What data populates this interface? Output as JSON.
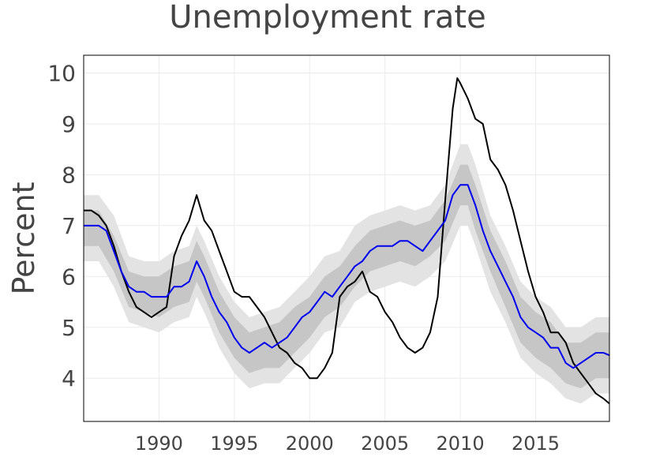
{
  "chart_data": {
    "type": "line",
    "title": "Unemployment rate",
    "xlabel": "",
    "ylabel": "Percent",
    "xlim": [
      1985.0,
      2019.9
    ],
    "ylim": [
      3.15,
      10.35
    ],
    "x_ticks": [
      1990,
      1995,
      2000,
      2005,
      2010,
      2015
    ],
    "y_ticks": [
      4,
      5,
      6,
      7,
      8,
      9,
      10
    ],
    "grid": true,
    "colors": {
      "actual": "#000000",
      "median": "#0000ee",
      "band_outer": "#e3e3e3",
      "band_inner": "#c6c6c6",
      "grid": "#ebebeb"
    },
    "series": [
      {
        "style": "line",
        "color": "#000000",
        "points": [
          [
            1985.0,
            7.3
          ],
          [
            1985.5,
            7.3
          ],
          [
            1986.0,
            7.2
          ],
          [
            1986.5,
            7.0
          ],
          [
            1987.0,
            6.6
          ],
          [
            1987.5,
            6.1
          ],
          [
            1988.0,
            5.7
          ],
          [
            1988.5,
            5.4
          ],
          [
            1989.0,
            5.3
          ],
          [
            1989.5,
            5.2
          ],
          [
            1990.0,
            5.3
          ],
          [
            1990.5,
            5.4
          ],
          [
            1991.0,
            6.4
          ],
          [
            1991.5,
            6.8
          ],
          [
            1992.0,
            7.1
          ],
          [
            1992.5,
            7.6
          ],
          [
            1993.0,
            7.1
          ],
          [
            1993.5,
            6.9
          ],
          [
            1994.0,
            6.5
          ],
          [
            1994.5,
            6.1
          ],
          [
            1995.0,
            5.7
          ],
          [
            1995.5,
            5.6
          ],
          [
            1996.0,
            5.6
          ],
          [
            1996.5,
            5.4
          ],
          [
            1997.0,
            5.2
          ],
          [
            1997.5,
            4.9
          ],
          [
            1998.0,
            4.6
          ],
          [
            1998.5,
            4.5
          ],
          [
            1999.0,
            4.3
          ],
          [
            1999.5,
            4.2
          ],
          [
            2000.0,
            4.0
          ],
          [
            2000.5,
            4.0
          ],
          [
            2001.0,
            4.2
          ],
          [
            2001.5,
            4.5
          ],
          [
            2002.0,
            5.6
          ],
          [
            2002.5,
            5.8
          ],
          [
            2003.0,
            5.9
          ],
          [
            2003.5,
            6.1
          ],
          [
            2004.0,
            5.7
          ],
          [
            2004.5,
            5.6
          ],
          [
            2005.0,
            5.3
          ],
          [
            2005.5,
            5.1
          ],
          [
            2006.0,
            4.8
          ],
          [
            2006.5,
            4.6
          ],
          [
            2007.0,
            4.5
          ],
          [
            2007.5,
            4.6
          ],
          [
            2008.0,
            4.9
          ],
          [
            2008.5,
            5.6
          ],
          [
            2009.0,
            7.5
          ],
          [
            2009.5,
            9.3
          ],
          [
            2009.8,
            9.9
          ],
          [
            2010.0,
            9.8
          ],
          [
            2010.5,
            9.5
          ],
          [
            2011.0,
            9.1
          ],
          [
            2011.5,
            9.0
          ],
          [
            2012.0,
            8.3
          ],
          [
            2012.5,
            8.1
          ],
          [
            2013.0,
            7.8
          ],
          [
            2013.5,
            7.3
          ],
          [
            2014.0,
            6.7
          ],
          [
            2014.5,
            6.1
          ],
          [
            2015.0,
            5.6
          ],
          [
            2015.5,
            5.3
          ],
          [
            2016.0,
            4.9
          ],
          [
            2016.5,
            4.9
          ],
          [
            2017.0,
            4.7
          ],
          [
            2017.5,
            4.3
          ],
          [
            2018.0,
            4.1
          ],
          [
            2018.5,
            3.9
          ],
          [
            2019.0,
            3.7
          ],
          [
            2019.5,
            3.6
          ],
          [
            2019.9,
            3.5
          ]
        ]
      },
      {
        "style": "line",
        "color": "#0000ee",
        "points": [
          [
            1985.0,
            7.0
          ],
          [
            1985.5,
            7.0
          ],
          [
            1986.0,
            7.0
          ],
          [
            1986.5,
            6.9
          ],
          [
            1987.0,
            6.5
          ],
          [
            1987.5,
            6.1
          ],
          [
            1988.0,
            5.8
          ],
          [
            1988.5,
            5.7
          ],
          [
            1989.0,
            5.7
          ],
          [
            1989.5,
            5.6
          ],
          [
            1990.0,
            5.6
          ],
          [
            1990.5,
            5.6
          ],
          [
            1991.0,
            5.8
          ],
          [
            1991.5,
            5.8
          ],
          [
            1992.0,
            5.9
          ],
          [
            1992.5,
            6.3
          ],
          [
            1993.0,
            6.0
          ],
          [
            1993.5,
            5.6
          ],
          [
            1994.0,
            5.3
          ],
          [
            1994.5,
            5.1
          ],
          [
            1995.0,
            4.8
          ],
          [
            1995.5,
            4.6
          ],
          [
            1996.0,
            4.5
          ],
          [
            1996.5,
            4.6
          ],
          [
            1997.0,
            4.7
          ],
          [
            1997.5,
            4.6
          ],
          [
            1998.0,
            4.7
          ],
          [
            1998.5,
            4.8
          ],
          [
            1999.0,
            5.0
          ],
          [
            1999.5,
            5.2
          ],
          [
            2000.0,
            5.3
          ],
          [
            2000.5,
            5.5
          ],
          [
            2001.0,
            5.7
          ],
          [
            2001.5,
            5.6
          ],
          [
            2002.0,
            5.8
          ],
          [
            2002.5,
            6.0
          ],
          [
            2003.0,
            6.2
          ],
          [
            2003.5,
            6.3
          ],
          [
            2004.0,
            6.5
          ],
          [
            2004.5,
            6.6
          ],
          [
            2005.0,
            6.6
          ],
          [
            2005.5,
            6.6
          ],
          [
            2006.0,
            6.7
          ],
          [
            2006.5,
            6.7
          ],
          [
            2007.0,
            6.6
          ],
          [
            2007.5,
            6.5
          ],
          [
            2008.0,
            6.7
          ],
          [
            2008.5,
            6.9
          ],
          [
            2009.0,
            7.1
          ],
          [
            2009.5,
            7.6
          ],
          [
            2010.0,
            7.8
          ],
          [
            2010.5,
            7.8
          ],
          [
            2011.0,
            7.4
          ],
          [
            2011.5,
            6.9
          ],
          [
            2012.0,
            6.5
          ],
          [
            2012.5,
            6.2
          ],
          [
            2013.0,
            5.9
          ],
          [
            2013.5,
            5.6
          ],
          [
            2014.0,
            5.2
          ],
          [
            2014.5,
            5.0
          ],
          [
            2015.0,
            4.9
          ],
          [
            2015.5,
            4.8
          ],
          [
            2016.0,
            4.6
          ],
          [
            2016.5,
            4.6
          ],
          [
            2017.0,
            4.3
          ],
          [
            2017.5,
            4.2
          ],
          [
            2018.0,
            4.3
          ],
          [
            2018.5,
            4.4
          ],
          [
            2019.0,
            4.5
          ],
          [
            2019.5,
            4.5
          ],
          [
            2019.9,
            4.45
          ]
        ]
      }
    ],
    "bands": [
      {
        "style": "outer_interval",
        "color": "#e3e3e3",
        "x": [
          1985.0,
          1986.0,
          1987.0,
          1988.0,
          1989.0,
          1990.0,
          1991.0,
          1992.0,
          1992.5,
          1993.0,
          1994.0,
          1995.0,
          1996.0,
          1997.0,
          1998.0,
          1999.0,
          2000.0,
          2001.0,
          2002.0,
          2003.0,
          2004.0,
          2005.0,
          2006.0,
          2007.0,
          2008.0,
          2009.0,
          2010.0,
          2010.5,
          2011.0,
          2012.0,
          2013.0,
          2014.0,
          2015.0,
          2016.0,
          2017.0,
          2018.0,
          2019.0,
          2019.9
        ],
        "lower": [
          6.3,
          6.3,
          5.8,
          5.1,
          5.0,
          4.9,
          5.1,
          5.2,
          5.6,
          5.3,
          4.6,
          4.1,
          3.8,
          3.9,
          3.9,
          4.2,
          4.5,
          4.9,
          5.0,
          5.5,
          5.7,
          5.8,
          5.9,
          5.8,
          6.0,
          6.3,
          7.0,
          7.0,
          6.6,
          5.7,
          5.1,
          4.4,
          4.1,
          3.9,
          3.6,
          3.5,
          3.7,
          3.7
        ],
        "upper": [
          7.6,
          7.6,
          7.2,
          6.4,
          6.3,
          6.3,
          6.5,
          6.6,
          7.0,
          6.7,
          6.0,
          5.5,
          5.2,
          5.3,
          5.4,
          5.7,
          6.0,
          6.4,
          6.5,
          7.0,
          7.2,
          7.3,
          7.4,
          7.3,
          7.4,
          7.8,
          8.6,
          8.6,
          8.2,
          7.2,
          6.6,
          5.9,
          5.6,
          5.4,
          5.0,
          5.0,
          5.2,
          5.2
        ]
      },
      {
        "style": "inner_interval",
        "color": "#c6c6c6",
        "x": [
          1985.0,
          1986.0,
          1987.0,
          1988.0,
          1989.0,
          1990.0,
          1991.0,
          1992.0,
          1992.5,
          1993.0,
          1994.0,
          1995.0,
          1996.0,
          1997.0,
          1998.0,
          1999.0,
          2000.0,
          2001.0,
          2002.0,
          2003.0,
          2004.0,
          2005.0,
          2006.0,
          2007.0,
          2008.0,
          2009.0,
          2010.0,
          2010.5,
          2011.0,
          2012.0,
          2013.0,
          2014.0,
          2015.0,
          2016.0,
          2017.0,
          2018.0,
          2019.0,
          2019.9
        ],
        "lower": [
          6.6,
          6.6,
          6.1,
          5.4,
          5.3,
          5.2,
          5.4,
          5.5,
          5.9,
          5.6,
          4.9,
          4.4,
          4.1,
          4.2,
          4.2,
          4.5,
          4.8,
          5.2,
          5.4,
          5.8,
          6.1,
          6.2,
          6.3,
          6.2,
          6.4,
          6.7,
          7.4,
          7.4,
          6.9,
          6.1,
          5.4,
          4.7,
          4.4,
          4.2,
          3.9,
          3.8,
          4.0,
          4.0
        ],
        "upper": [
          7.3,
          7.3,
          6.8,
          6.1,
          6.0,
          6.0,
          6.2,
          6.3,
          6.7,
          6.4,
          5.7,
          5.2,
          4.9,
          5.0,
          5.1,
          5.4,
          5.6,
          6.0,
          6.2,
          6.6,
          6.9,
          7.0,
          7.1,
          7.0,
          7.1,
          7.5,
          8.2,
          8.2,
          7.8,
          6.9,
          6.3,
          5.6,
          5.3,
          5.1,
          4.7,
          4.7,
          4.9,
          4.9
        ]
      }
    ]
  }
}
